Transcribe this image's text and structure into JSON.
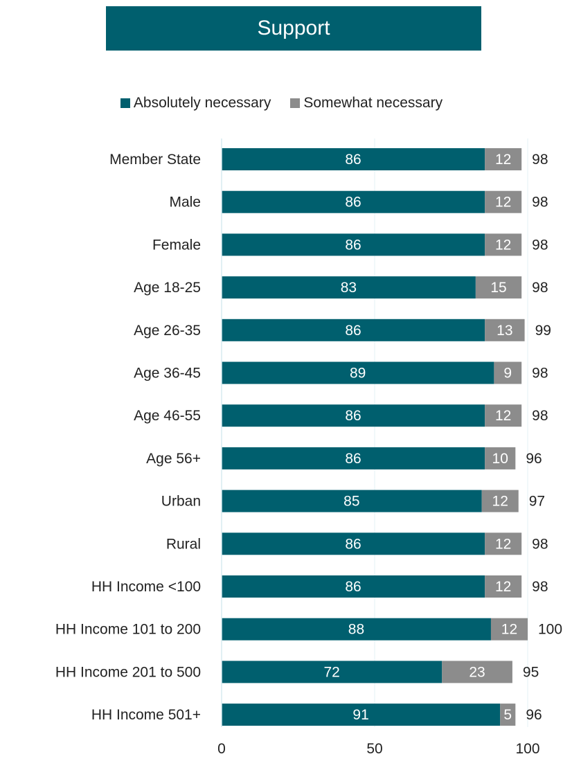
{
  "chart_data": {
    "type": "bar",
    "orientation": "horizontal",
    "stacked": true,
    "title": "Support",
    "categories": [
      "Member State",
      "Male",
      "Female",
      "Age 18-25",
      "Age 26-35",
      "Age 36-45",
      "Age 46-55",
      "Age 56+",
      "Urban",
      "Rural",
      "HH Income <100",
      "HH Income 101 to 200",
      "HH Income 201 to 500",
      "HH Income 501+"
    ],
    "series": [
      {
        "name": "Absolutely necessary",
        "color": "#005f6e",
        "values": [
          86,
          86,
          86,
          83,
          86,
          89,
          86,
          86,
          85,
          86,
          86,
          88,
          72,
          91
        ]
      },
      {
        "name": "Somewhat necessary",
        "color": "#8c8c8c",
        "values": [
          12,
          12,
          12,
          15,
          13,
          9,
          12,
          10,
          12,
          12,
          12,
          12,
          23,
          5
        ]
      }
    ],
    "totals": [
      98,
      98,
      98,
      98,
      99,
      98,
      98,
      96,
      97,
      98,
      98,
      100,
      95,
      96
    ],
    "xlim": [
      0,
      100
    ],
    "xticks": [
      "0",
      "50",
      "100"
    ],
    "legend_position": "top-center",
    "grid": false
  }
}
